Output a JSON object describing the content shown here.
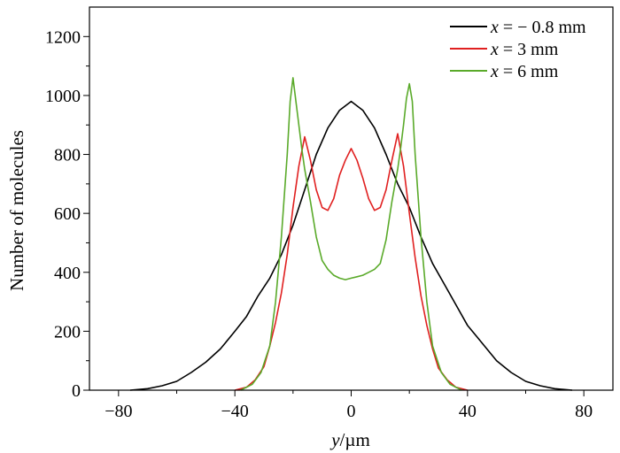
{
  "chart_data": {
    "type": "line",
    "xlabel_var": "y",
    "xlabel_unit": "/µm",
    "ylabel": "Number of molecules",
    "xlim": [
      -90,
      90
    ],
    "ylim": [
      0,
      1300
    ],
    "x_ticks": [
      -80,
      -40,
      0,
      40,
      80
    ],
    "x_tick_labels": [
      "−80",
      "−40",
      "0",
      "40",
      "80"
    ],
    "y_ticks": [
      0,
      200,
      400,
      600,
      800,
      1000,
      1200
    ],
    "y_tick_labels": [
      "0",
      "200",
      "400",
      "600",
      "800",
      "1000",
      "1200"
    ],
    "grid": false,
    "legend_position": "top-right",
    "series": [
      {
        "name": "x = − 0.8 mm",
        "legend_var": "x",
        "legend_rest": " = − 0.8 mm",
        "color": "#000000",
        "x": [
          -76,
          -70,
          -65,
          -60,
          -55,
          -50,
          -45,
          -40,
          -36,
          -32,
          -28,
          -24,
          -20,
          -16,
          -12,
          -8,
          -4,
          0,
          4,
          8,
          12,
          16,
          20,
          24,
          28,
          32,
          36,
          40,
          45,
          50,
          55,
          60,
          65,
          70,
          76
        ],
        "y": [
          0,
          5,
          15,
          30,
          60,
          95,
          140,
          200,
          250,
          320,
          380,
          460,
          560,
          680,
          800,
          890,
          950,
          980,
          950,
          890,
          800,
          700,
          620,
          520,
          430,
          360,
          290,
          220,
          160,
          100,
          60,
          30,
          15,
          5,
          0
        ]
      },
      {
        "name": "x = 3 mm",
        "legend_var": "x",
        "legend_rest": " = 3 mm",
        "color": "#e02020",
        "x": [
          -40,
          -36,
          -33,
          -30,
          -28,
          -26,
          -24,
          -22,
          -20,
          -18,
          -16,
          -14,
          -12,
          -10,
          -8,
          -6,
          -4,
          -2,
          0,
          2,
          4,
          6,
          8,
          10,
          12,
          14,
          16,
          18,
          20,
          22,
          24,
          26,
          28,
          30,
          33,
          36,
          40
        ],
        "y": [
          0,
          10,
          35,
          80,
          150,
          230,
          330,
          460,
          620,
          760,
          860,
          780,
          680,
          620,
          610,
          650,
          730,
          780,
          820,
          780,
          720,
          650,
          610,
          620,
          680,
          780,
          870,
          760,
          600,
          450,
          320,
          220,
          140,
          75,
          35,
          10,
          0
        ]
      },
      {
        "name": "x = 6 mm",
        "legend_var": "x",
        "legend_rest": " = 6 mm",
        "color": "#5aaa2a",
        "x": [
          -38,
          -34,
          -31,
          -28,
          -26,
          -24,
          -22,
          -21,
          -20,
          -19,
          -18,
          -17,
          -16,
          -14,
          -12,
          -10,
          -8,
          -6,
          -4,
          -2,
          0,
          2,
          4,
          6,
          8,
          10,
          12,
          14,
          16,
          17,
          18,
          19,
          20,
          21,
          22,
          24,
          26,
          28,
          31,
          34,
          38
        ],
        "y": [
          0,
          20,
          60,
          150,
          300,
          520,
          800,
          980,
          1060,
          980,
          900,
          820,
          750,
          640,
          520,
          440,
          410,
          390,
          380,
          375,
          380,
          385,
          390,
          400,
          410,
          430,
          510,
          640,
          750,
          820,
          900,
          990,
          1040,
          980,
          800,
          520,
          300,
          150,
          60,
          20,
          0
        ]
      }
    ]
  }
}
